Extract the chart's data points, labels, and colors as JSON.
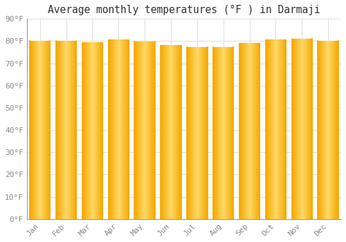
{
  "months": [
    "Jan",
    "Feb",
    "Mar",
    "Apr",
    "May",
    "Jun",
    "Jul",
    "Aug",
    "Sep",
    "Oct",
    "Nov",
    "Dec"
  ],
  "values": [
    80.0,
    80.0,
    79.3,
    80.6,
    79.7,
    78.1,
    77.2,
    77.2,
    79.0,
    80.6,
    81.0,
    80.0
  ],
  "title": "Average monthly temperatures (°F ) in Darmaji",
  "ylim": [
    0,
    90
  ],
  "yticks": [
    0,
    10,
    20,
    30,
    40,
    50,
    60,
    70,
    80,
    90
  ],
  "bar_color_center": "#FFD966",
  "bar_color_edge": "#F5A800",
  "background_color": "#FFFFFF",
  "grid_color": "#DDDDDD",
  "title_fontsize": 10.5,
  "tick_fontsize": 8,
  "tick_color": "#888888",
  "font_family": "monospace"
}
